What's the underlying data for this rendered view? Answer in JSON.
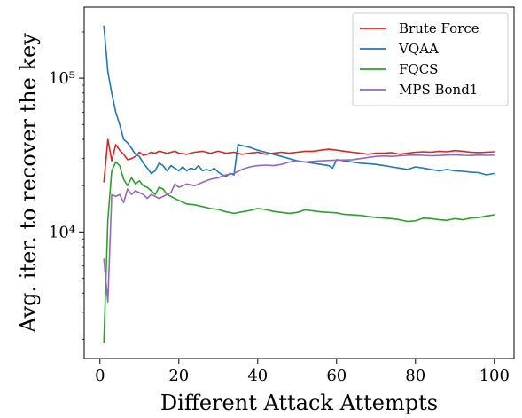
{
  "chart_data": {
    "type": "line",
    "title": "",
    "xlabel": "Different Attack Attempts",
    "ylabel": "Avg. iter. to recover the key",
    "xlim": [
      -4,
      105
    ],
    "ylim": [
      1500,
      290000
    ],
    "yscale": "log",
    "grid": false,
    "legend_position": "top-right",
    "x_ticks": [
      0,
      20,
      40,
      60,
      80,
      100
    ],
    "y_ticks": [
      {
        "value": 10000,
        "label": "10⁴"
      },
      {
        "value": 100000,
        "label": "10⁵"
      }
    ],
    "series": [
      {
        "name": "Brute Force",
        "color": "#d62728",
        "points": [
          [
            1,
            21000
          ],
          [
            2,
            40000
          ],
          [
            3,
            29000
          ],
          [
            4,
            37000
          ],
          [
            5,
            34000
          ],
          [
            6,
            32000
          ],
          [
            7,
            29500
          ],
          [
            8,
            30000
          ],
          [
            9,
            31000
          ],
          [
            10,
            33000
          ],
          [
            11,
            31500
          ],
          [
            12,
            32000
          ],
          [
            13,
            33000
          ],
          [
            14,
            32500
          ],
          [
            15,
            33500
          ],
          [
            16,
            33000
          ],
          [
            17,
            32500
          ],
          [
            18,
            33000
          ],
          [
            19,
            33500
          ],
          [
            20,
            32500
          ],
          [
            22,
            32000
          ],
          [
            24,
            33000
          ],
          [
            26,
            33500
          ],
          [
            28,
            32500
          ],
          [
            30,
            33500
          ],
          [
            32,
            32500
          ],
          [
            34,
            33000
          ],
          [
            36,
            32000
          ],
          [
            38,
            32500
          ],
          [
            40,
            33000
          ],
          [
            42,
            32000
          ],
          [
            44,
            32500
          ],
          [
            46,
            33000
          ],
          [
            48,
            32500
          ],
          [
            50,
            33000
          ],
          [
            52,
            33500
          ],
          [
            54,
            33500
          ],
          [
            56,
            34000
          ],
          [
            58,
            34500
          ],
          [
            60,
            34000
          ],
          [
            62,
            33500
          ],
          [
            64,
            33000
          ],
          [
            66,
            32500
          ],
          [
            68,
            32000
          ],
          [
            70,
            32500
          ],
          [
            72,
            32500
          ],
          [
            74,
            32800
          ],
          [
            76,
            32000
          ],
          [
            78,
            32500
          ],
          [
            80,
            33000
          ],
          [
            82,
            33200
          ],
          [
            84,
            33000
          ],
          [
            86,
            33500
          ],
          [
            88,
            33200
          ],
          [
            90,
            33800
          ],
          [
            92,
            33500
          ],
          [
            94,
            33000
          ],
          [
            96,
            32800
          ],
          [
            98,
            33000
          ],
          [
            100,
            33200
          ]
        ]
      },
      {
        "name": "VQAA",
        "color": "#1f77b4",
        "points": [
          [
            1,
            220000
          ],
          [
            2,
            110000
          ],
          [
            3,
            80000
          ],
          [
            4,
            60000
          ],
          [
            5,
            50000
          ],
          [
            6,
            40000
          ],
          [
            7,
            38000
          ],
          [
            8,
            35000
          ],
          [
            9,
            32000
          ],
          [
            10,
            31000
          ],
          [
            11,
            28000
          ],
          [
            12,
            26000
          ],
          [
            13,
            24000
          ],
          [
            14,
            25000
          ],
          [
            15,
            28000
          ],
          [
            16,
            27000
          ],
          [
            17,
            25000
          ],
          [
            18,
            27000
          ],
          [
            19,
            26000
          ],
          [
            20,
            25000
          ],
          [
            21,
            26500
          ],
          [
            22,
            25000
          ],
          [
            23,
            26000
          ],
          [
            24,
            25500
          ],
          [
            25,
            27000
          ],
          [
            26,
            25000
          ],
          [
            27,
            25500
          ],
          [
            28,
            25000
          ],
          [
            29,
            26000
          ],
          [
            30,
            24500
          ],
          [
            31,
            23500
          ],
          [
            32,
            23000
          ],
          [
            33,
            24000
          ],
          [
            34,
            23500
          ],
          [
            35,
            37000
          ],
          [
            38,
            35500
          ],
          [
            40,
            34000
          ],
          [
            42,
            33000
          ],
          [
            44,
            32000
          ],
          [
            46,
            31000
          ],
          [
            48,
            30000
          ],
          [
            50,
            29000
          ],
          [
            52,
            28500
          ],
          [
            54,
            28000
          ],
          [
            56,
            27500
          ],
          [
            58,
            27000
          ],
          [
            59,
            26000
          ],
          [
            60,
            29500
          ],
          [
            62,
            29000
          ],
          [
            64,
            28500
          ],
          [
            66,
            28000
          ],
          [
            68,
            27800
          ],
          [
            70,
            27500
          ],
          [
            72,
            27000
          ],
          [
            74,
            26500
          ],
          [
            76,
            26000
          ],
          [
            78,
            25500
          ],
          [
            80,
            26500
          ],
          [
            82,
            26000
          ],
          [
            84,
            25500
          ],
          [
            86,
            25000
          ],
          [
            88,
            25500
          ],
          [
            90,
            25000
          ],
          [
            92,
            24800
          ],
          [
            94,
            24500
          ],
          [
            96,
            24300
          ],
          [
            98,
            23500
          ],
          [
            100,
            24000
          ]
        ]
      },
      {
        "name": "FQCS",
        "color": "#2ca02c",
        "points": [
          [
            1,
            1900
          ],
          [
            2,
            12000
          ],
          [
            3,
            25000
          ],
          [
            4,
            28500
          ],
          [
            5,
            27000
          ],
          [
            6,
            22000
          ],
          [
            7,
            20000
          ],
          [
            8,
            22500
          ],
          [
            9,
            20500
          ],
          [
            10,
            21500
          ],
          [
            11,
            20000
          ],
          [
            12,
            19500
          ],
          [
            13,
            18500
          ],
          [
            14,
            17500
          ],
          [
            15,
            19500
          ],
          [
            16,
            19000
          ],
          [
            17,
            17500
          ],
          [
            18,
            17000
          ],
          [
            19,
            16500
          ],
          [
            20,
            16000
          ],
          [
            22,
            15200
          ],
          [
            24,
            15000
          ],
          [
            26,
            14600
          ],
          [
            28,
            14200
          ],
          [
            30,
            14000
          ],
          [
            32,
            13500
          ],
          [
            34,
            13200
          ],
          [
            36,
            13500
          ],
          [
            38,
            13800
          ],
          [
            40,
            14200
          ],
          [
            42,
            14000
          ],
          [
            44,
            13600
          ],
          [
            46,
            13400
          ],
          [
            48,
            13200
          ],
          [
            50,
            13400
          ],
          [
            52,
            13900
          ],
          [
            54,
            13700
          ],
          [
            56,
            13500
          ],
          [
            58,
            13400
          ],
          [
            60,
            13300
          ],
          [
            62,
            13000
          ],
          [
            64,
            12900
          ],
          [
            66,
            12800
          ],
          [
            68,
            12600
          ],
          [
            70,
            12400
          ],
          [
            72,
            12300
          ],
          [
            74,
            12200
          ],
          [
            76,
            12000
          ],
          [
            78,
            11700
          ],
          [
            80,
            11800
          ],
          [
            82,
            12300
          ],
          [
            84,
            12200
          ],
          [
            86,
            12000
          ],
          [
            88,
            11900
          ],
          [
            90,
            12200
          ],
          [
            92,
            12000
          ],
          [
            94,
            12300
          ],
          [
            96,
            12400
          ],
          [
            98,
            12700
          ],
          [
            100,
            12900
          ]
        ]
      },
      {
        "name": "MPS Bond1",
        "color": "#9467bd",
        "points": [
          [
            1,
            6700
          ],
          [
            2,
            3500
          ],
          [
            3,
            17500
          ],
          [
            4,
            17000
          ],
          [
            5,
            17500
          ],
          [
            6,
            15500
          ],
          [
            7,
            19000
          ],
          [
            8,
            17500
          ],
          [
            9,
            18500
          ],
          [
            10,
            18000
          ],
          [
            11,
            17500
          ],
          [
            12,
            16500
          ],
          [
            13,
            17500
          ],
          [
            14,
            17000
          ],
          [
            15,
            16500
          ],
          [
            16,
            17000
          ],
          [
            17,
            17500
          ],
          [
            18,
            18000
          ],
          [
            19,
            20500
          ],
          [
            20,
            19500
          ],
          [
            22,
            20500
          ],
          [
            24,
            20000
          ],
          [
            26,
            21000
          ],
          [
            28,
            22000
          ],
          [
            30,
            22500
          ],
          [
            32,
            23500
          ],
          [
            34,
            24000
          ],
          [
            36,
            25500
          ],
          [
            38,
            26500
          ],
          [
            40,
            27000
          ],
          [
            42,
            27200
          ],
          [
            44,
            27000
          ],
          [
            46,
            27500
          ],
          [
            48,
            28500
          ],
          [
            50,
            29000
          ],
          [
            52,
            28500
          ],
          [
            54,
            28800
          ],
          [
            56,
            29000
          ],
          [
            58,
            29200
          ],
          [
            60,
            29300
          ],
          [
            62,
            29400
          ],
          [
            64,
            29500
          ],
          [
            66,
            30000
          ],
          [
            68,
            30500
          ],
          [
            70,
            31000
          ],
          [
            72,
            31200
          ],
          [
            74,
            31000
          ],
          [
            76,
            31300
          ],
          [
            78,
            31500
          ],
          [
            80,
            31600
          ],
          [
            82,
            31500
          ],
          [
            84,
            31300
          ],
          [
            86,
            31400
          ],
          [
            88,
            31600
          ],
          [
            90,
            31700
          ],
          [
            92,
            31500
          ],
          [
            94,
            31400
          ],
          [
            96,
            31600
          ],
          [
            98,
            31500
          ],
          [
            100,
            31600
          ]
        ]
      }
    ]
  }
}
